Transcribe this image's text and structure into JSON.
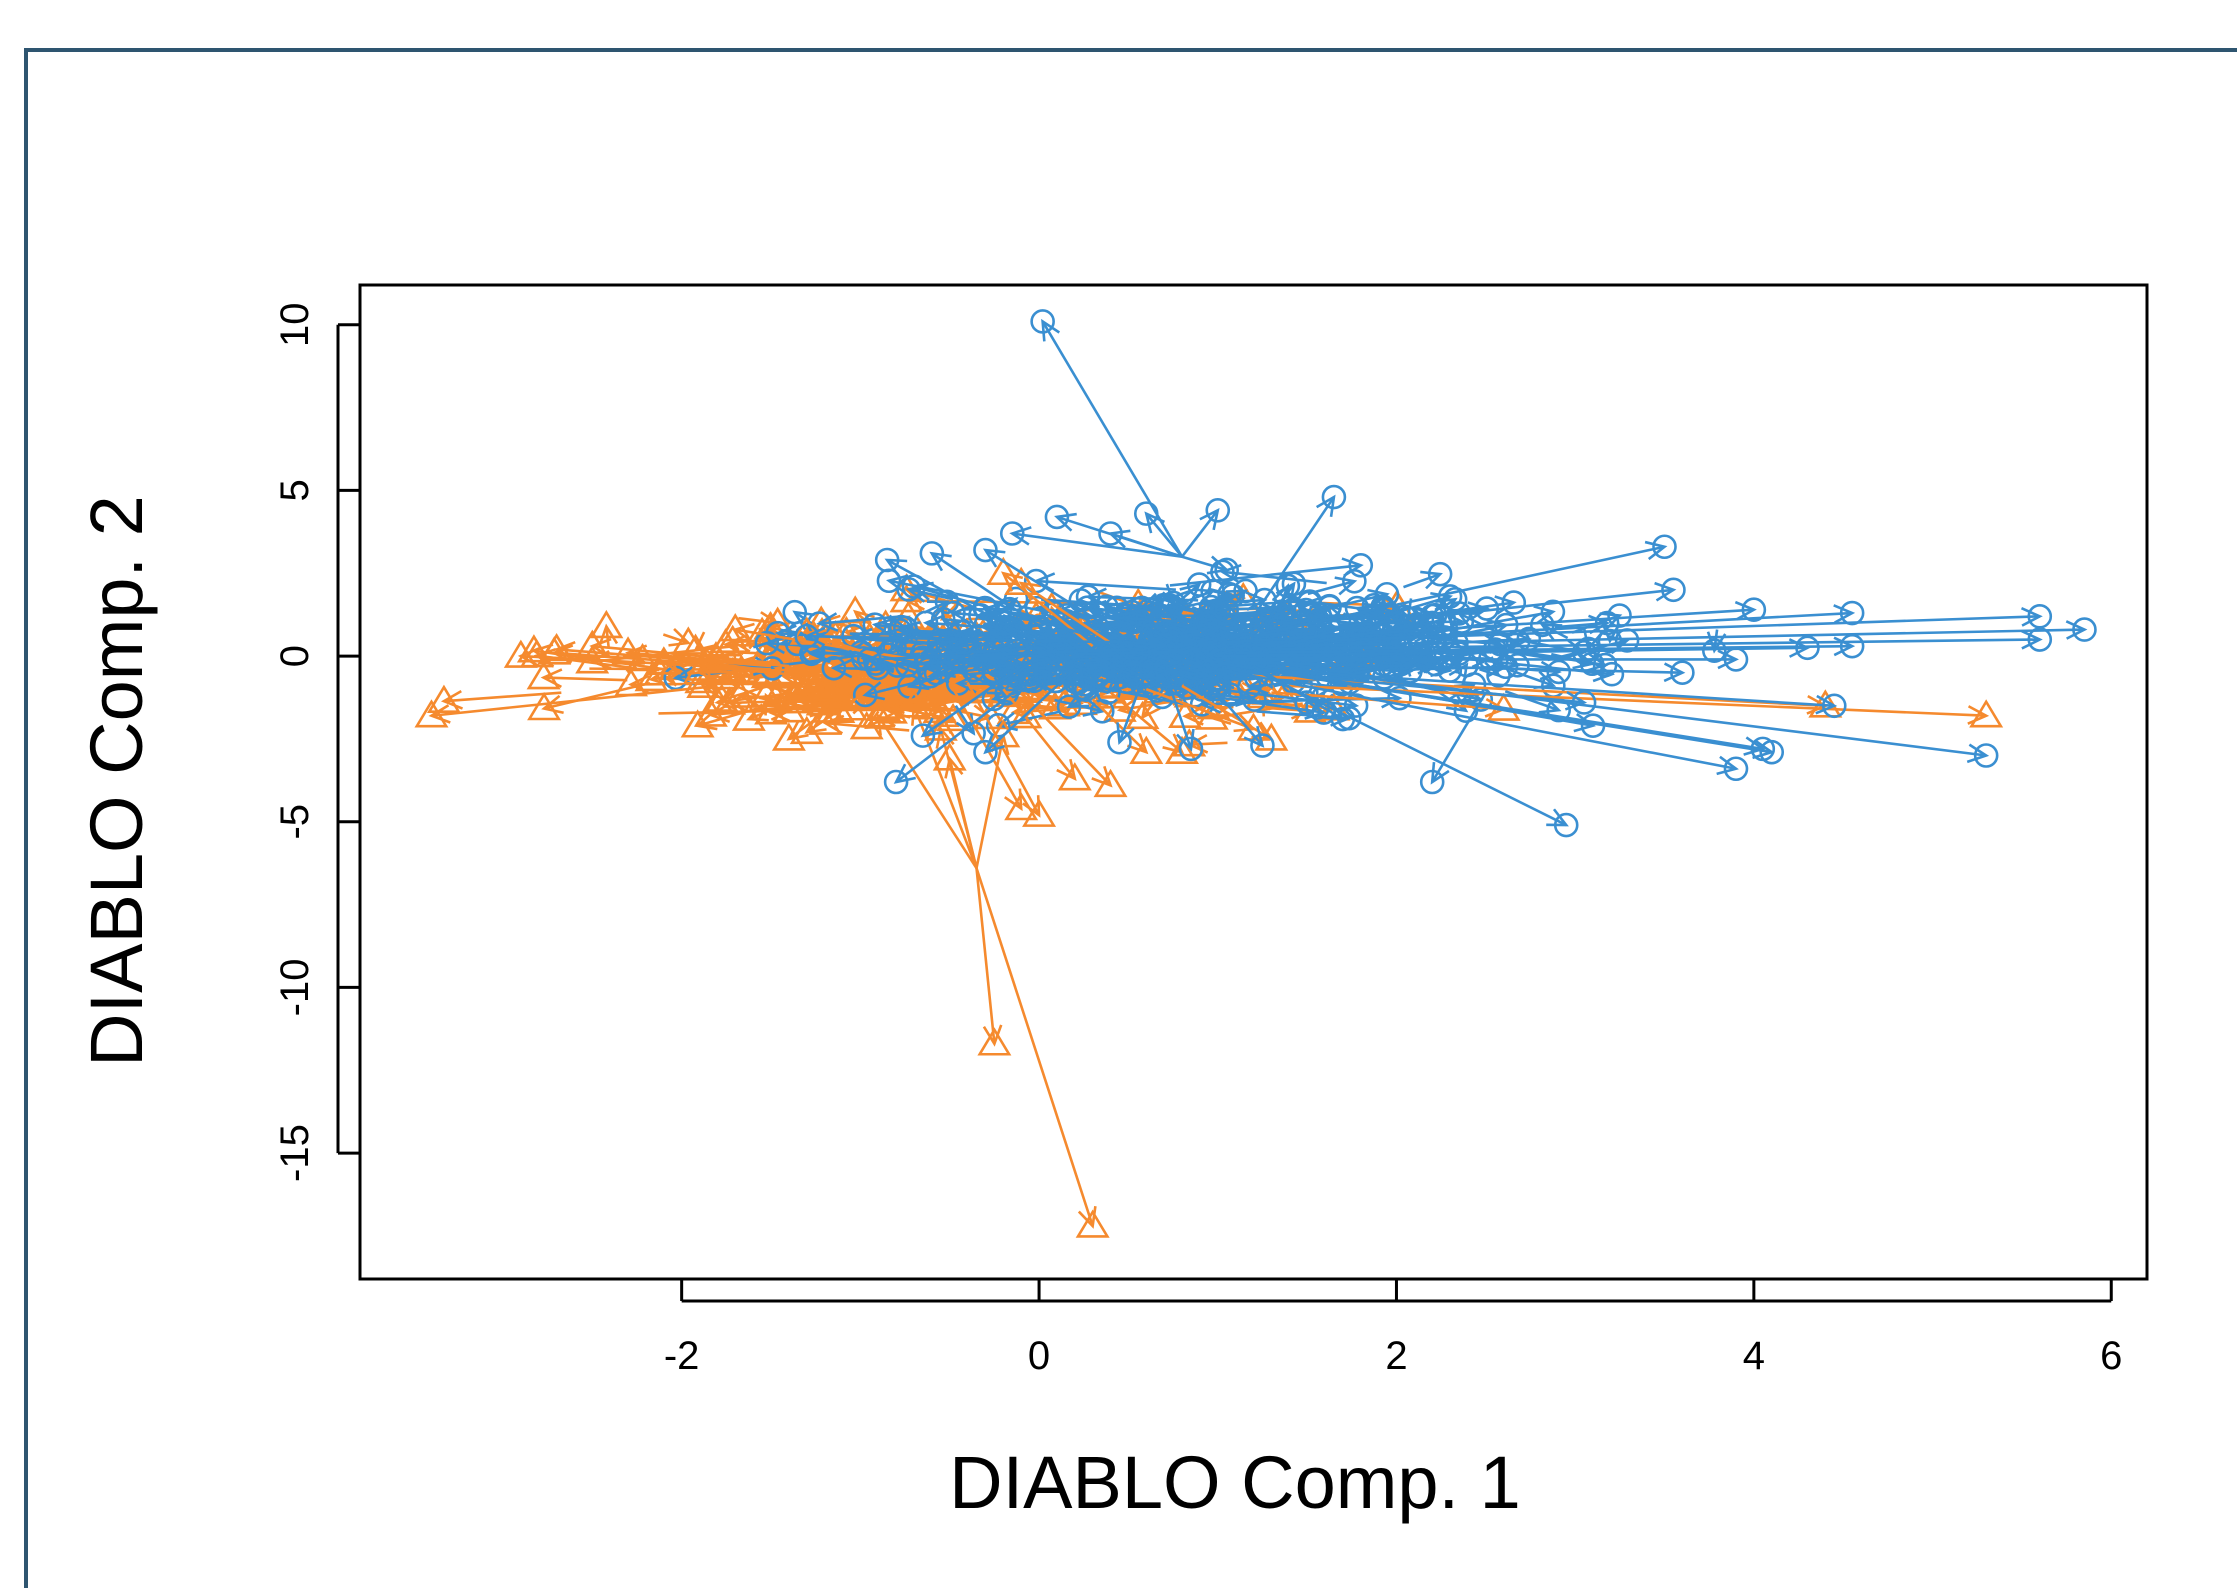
{
  "chart_data": {
    "type": "scatter",
    "xlabel": "DIABLO Comp. 1",
    "ylabel": "DIABLO Comp. 2",
    "xlim": [
      -3.8,
      6.2
    ],
    "ylim": [
      -18.8,
      11.2
    ],
    "x_ticks": [
      -2,
      0,
      2,
      4,
      6
    ],
    "y_ticks": [
      -15,
      -10,
      -5,
      0,
      5,
      10
    ],
    "grid": false,
    "legend": "none",
    "series": [
      {
        "marker": "triangle",
        "color": "#f58a2e",
        "arrows": [
          {
            "from": [
              -0.35,
              -6.4
            ],
            "to": [
              0.3,
              -17.2
            ]
          },
          {
            "from": [
              -0.35,
              -6.4
            ],
            "to": [
              -0.25,
              -11.7
            ]
          },
          {
            "from": [
              -0.35,
              -6.4
            ],
            "to": [
              -0.55,
              -2.2
            ]
          },
          {
            "from": [
              -0.35,
              -6.4
            ],
            "to": [
              -0.7,
              -1.5
            ]
          },
          {
            "from": [
              -0.35,
              -6.4
            ],
            "to": [
              -0.2,
              -2.4
            ]
          },
          {
            "from": [
              -0.35,
              -6.4
            ],
            "to": [
              -0.9,
              -1.8
            ]
          },
          {
            "from": [
              -0.35,
              -6.4
            ],
            "to": [
              -0.5,
              -3.1
            ]
          },
          {
            "from": [
              -1.8,
              -0.9
            ],
            "to": [
              -3.4,
              -1.8
            ]
          },
          {
            "from": [
              -1.5,
              -0.4
            ],
            "to": [
              -2.9,
              0.0
            ]
          },
          {
            "from": [
              -1.5,
              -0.3
            ],
            "to": [
              -2.7,
              0.2
            ]
          },
          {
            "from": [
              -1.5,
              -0.2
            ],
            "to": [
              -2.5,
              0.3
            ]
          },
          {
            "from": [
              -1.4,
              -0.3
            ],
            "to": [
              -2.3,
              0.1
            ]
          },
          {
            "from": [
              -1.3,
              -0.6
            ],
            "to": [
              -2.1,
              -0.2
            ]
          },
          {
            "from": [
              -1.3,
              -0.4
            ],
            "to": [
              -1.9,
              -0.5
            ]
          },
          {
            "from": [
              -1.2,
              -1.0
            ],
            "to": [
              -1.8,
              -1.4
            ]
          },
          {
            "from": [
              -1.1,
              -1.3
            ],
            "to": [
              -1.4,
              -2.5
            ]
          },
          {
            "from": [
              -1.0,
              -1.2
            ],
            "to": [
              -1.3,
              -2.3
            ]
          },
          {
            "from": [
              -0.5,
              -0.8
            ],
            "to": [
              -0.1,
              -4.6
            ]
          },
          {
            "from": [
              -0.4,
              -0.8
            ],
            "to": [
              0.0,
              -4.8
            ]
          },
          {
            "from": [
              -0.2,
              -1.0
            ],
            "to": [
              0.2,
              -3.7
            ]
          },
          {
            "from": [
              -0.1,
              -1.1
            ],
            "to": [
              0.4,
              -3.9
            ]
          },
          {
            "from": [
              0.3,
              -1.3
            ],
            "to": [
              0.6,
              -2.9
            ]
          },
          {
            "from": [
              0.4,
              -1.1
            ],
            "to": [
              0.8,
              -2.9
            ]
          },
          {
            "from": [
              0.6,
              -1.0
            ],
            "to": [
              1.2,
              -2.2
            ]
          },
          {
            "from": [
              0.8,
              -0.9
            ],
            "to": [
              1.3,
              -2.5
            ]
          },
          {
            "from": [
              1.3,
              -1.1
            ],
            "to": [
              2.6,
              -1.6
            ]
          },
          {
            "from": [
              1.4,
              -0.9
            ],
            "to": [
              5.3,
              -1.8
            ]
          },
          {
            "from": [
              1.2,
              -0.6
            ],
            "to": [
              4.4,
              -1.5
            ]
          },
          {
            "from": [
              0.3,
              0.3
            ],
            "to": [
              -0.2,
              2.5
            ]
          },
          {
            "from": [
              0.4,
              0.4
            ],
            "to": [
              -0.1,
              2.2
            ]
          },
          {
            "from": [
              -0.8,
              -0.2
            ],
            "to": [
              -1.3,
              0.7
            ]
          },
          {
            "from": [
              -0.7,
              -0.1
            ],
            "to": [
              -1.7,
              0.8
            ]
          }
        ]
      },
      {
        "marker": "circle",
        "color": "#3a8fd1",
        "arrows": [
          {
            "from": [
              0.8,
              3.0
            ],
            "to": [
              0.02,
              10.1
            ]
          },
          {
            "from": [
              0.8,
              3.0
            ],
            "to": [
              0.6,
              4.3
            ]
          },
          {
            "from": [
              0.8,
              3.0
            ],
            "to": [
              0.1,
              4.2
            ]
          },
          {
            "from": [
              0.8,
              3.0
            ],
            "to": [
              0.4,
              3.7
            ]
          },
          {
            "from": [
              0.8,
              3.0
            ],
            "to": [
              1.0,
              4.4
            ]
          },
          {
            "from": [
              0.8,
              3.0
            ],
            "to": [
              1.05,
              2.6
            ]
          },
          {
            "from": [
              0.8,
              3.0
            ],
            "to": [
              -0.15,
              3.7
            ]
          },
          {
            "from": [
              1.2,
              1.2
            ],
            "to": [
              1.65,
              4.8
            ]
          },
          {
            "from": [
              1.1,
              0.5
            ],
            "to": [
              3.5,
              3.3
            ]
          },
          {
            "from": [
              1.2,
              0.6
            ],
            "to": [
              3.55,
              2.0
            ]
          },
          {
            "from": [
              1.0,
              0.4
            ],
            "to": [
              4.0,
              1.4
            ]
          },
          {
            "from": [
              1.1,
              0.3
            ],
            "to": [
              4.55,
              1.3
            ]
          },
          {
            "from": [
              1.2,
              0.4
            ],
            "to": [
              5.6,
              1.2
            ]
          },
          {
            "from": [
              1.3,
              0.3
            ],
            "to": [
              5.85,
              0.8
            ]
          },
          {
            "from": [
              1.2,
              0.2
            ],
            "to": [
              5.6,
              0.5
            ]
          },
          {
            "from": [
              1.1,
              0.1
            ],
            "to": [
              4.55,
              0.3
            ]
          },
          {
            "from": [
              1.0,
              0.0
            ],
            "to": [
              4.3,
              0.25
            ]
          },
          {
            "from": [
              1.1,
              -0.1
            ],
            "to": [
              3.9,
              -0.1
            ]
          },
          {
            "from": [
              1.2,
              -0.2
            ],
            "to": [
              3.6,
              -0.5
            ]
          },
          {
            "from": [
              1.3,
              -0.3
            ],
            "to": [
              5.3,
              -3.0
            ]
          },
          {
            "from": [
              1.2,
              -0.4
            ],
            "to": [
              4.45,
              -1.5
            ]
          },
          {
            "from": [
              1.1,
              -0.3
            ],
            "to": [
              4.1,
              -2.9
            ]
          },
          {
            "from": [
              1.0,
              -0.2
            ],
            "to": [
              4.05,
              -2.8
            ]
          },
          {
            "from": [
              1.0,
              -0.4
            ],
            "to": [
              3.9,
              -3.4
            ]
          },
          {
            "from": [
              1.2,
              -0.4
            ],
            "to": [
              2.95,
              -5.1
            ]
          },
          {
            "from": [
              2.5,
              -1.1
            ],
            "to": [
              2.2,
              -3.8
            ]
          },
          {
            "from": [
              1.4,
              -0.5
            ],
            "to": [
              3.1,
              -2.1
            ]
          },
          {
            "from": [
              1.5,
              -0.6
            ],
            "to": [
              3.05,
              -1.4
            ]
          },
          {
            "from": [
              0.1,
              0.1
            ],
            "to": [
              -0.85,
              2.9
            ]
          },
          {
            "from": [
              0.2,
              0.2
            ],
            "to": [
              -0.6,
              3.1
            ]
          },
          {
            "from": [
              0.0,
              -0.5
            ],
            "to": [
              -0.8,
              -3.8
            ]
          },
          {
            "from": [
              -0.1,
              -0.3
            ],
            "to": [
              -0.65,
              -2.4
            ]
          },
          {
            "from": [
              0.2,
              -0.4
            ],
            "to": [
              -0.3,
              -2.9
            ]
          },
          {
            "from": [
              0.6,
              -0.4
            ],
            "to": [
              0.45,
              -2.6
            ]
          },
          {
            "from": [
              0.7,
              -0.4
            ],
            "to": [
              0.85,
              -2.8
            ]
          },
          {
            "from": [
              0.9,
              -0.5
            ],
            "to": [
              1.25,
              -2.7
            ]
          },
          {
            "from": [
              1.2,
              -0.3
            ],
            "to": [
              1.7,
              -1.9
            ]
          },
          {
            "from": [
              1.3,
              0.2
            ],
            "to": [
              2.3,
              1.8
            ]
          },
          {
            "from": [
              1.4,
              0.3
            ],
            "to": [
              2.2,
              1.0
            ]
          },
          {
            "from": [
              0.5,
              0.5
            ],
            "to": [
              -0.3,
              3.2
            ]
          },
          {
            "from": [
              0.3,
              0.6
            ],
            "to": [
              -0.7,
              2.1
            ]
          },
          {
            "from": [
              0.6,
              0.4
            ],
            "to": [
              -1.3,
              0.6
            ]
          },
          {
            "from": [
              0.5,
              0.2
            ],
            "to": [
              -0.95,
              -0.1
            ]
          }
        ]
      }
    ],
    "clouds": [
      {
        "series": 0,
        "cx": -0.7,
        "cy": -0.5,
        "sx": 0.75,
        "sy": 0.7,
        "n": 260
      },
      {
        "series": 0,
        "cx": 0.5,
        "cy": 0.0,
        "sx": 0.6,
        "sy": 0.8,
        "n": 90
      },
      {
        "series": 1,
        "cx": 0.9,
        "cy": 0.3,
        "sx": 0.75,
        "sy": 0.75,
        "n": 320
      },
      {
        "series": 1,
        "cx": 2.0,
        "cy": 0.2,
        "sx": 0.55,
        "sy": 0.55,
        "n": 60
      },
      {
        "series": 1,
        "cx": -0.3,
        "cy": 0.1,
        "sx": 0.5,
        "sy": 0.6,
        "n": 60
      }
    ]
  }
}
